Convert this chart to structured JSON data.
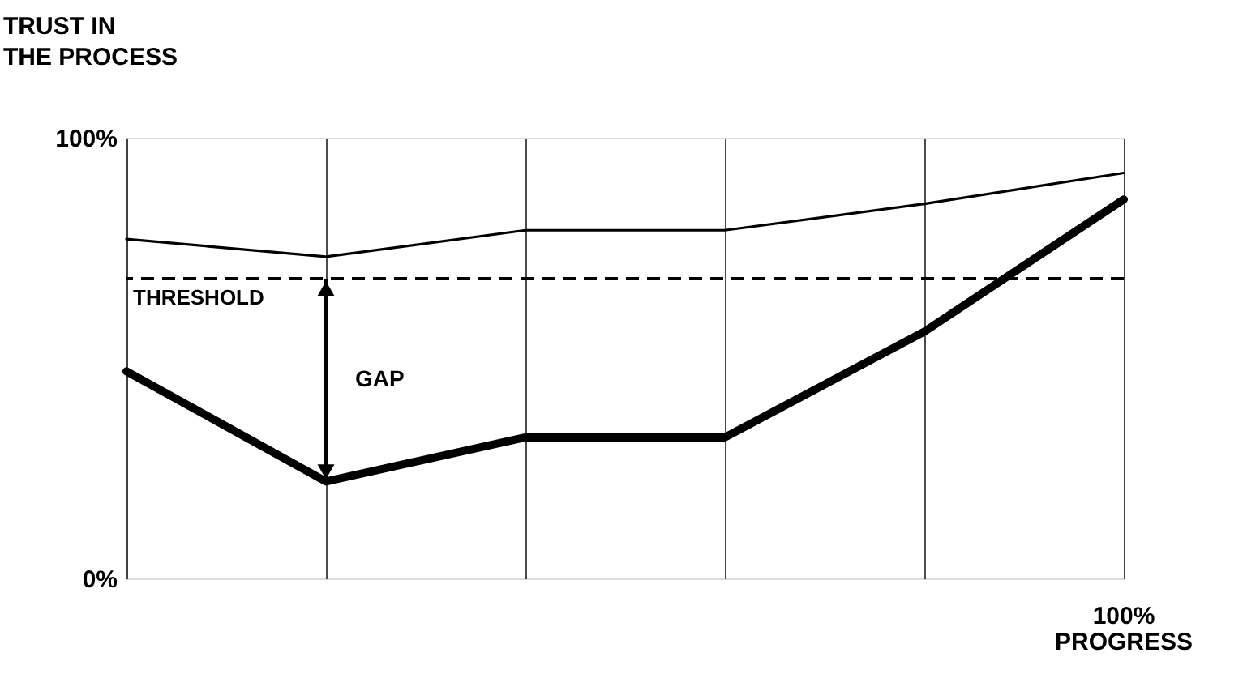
{
  "chart_data": {
    "type": "line",
    "xlabel": "PROGRESS",
    "ylabel": "TRUST IN THE PROCESS",
    "categories": [
      null,
      null,
      null,
      null,
      null,
      null
    ],
    "series": [
      {
        "color": "#000000",
        "values": [
          77,
          73,
          79,
          79,
          85,
          92
        ],
        "line_style": "solid"
      },
      {
        "color": "#000000",
        "values": [
          47,
          22,
          32,
          32,
          56,
          86
        ],
        "line_style": "solid"
      }
    ],
    "ylim": [
      0,
      100
    ],
    "yticks": [
      {
        "value": 0,
        "label": "0%"
      },
      {
        "value": 100,
        "label": "100%"
      }
    ],
    "ref_lines": [
      {
        "axis": "y",
        "value": 68,
        "label": "THRESHOLD",
        "line_style": "dashed",
        "color": "#000000"
      }
    ],
    "annotations": [
      "GAP",
      "100%"
    ],
    "grid": "x",
    "marker": "none"
  }
}
